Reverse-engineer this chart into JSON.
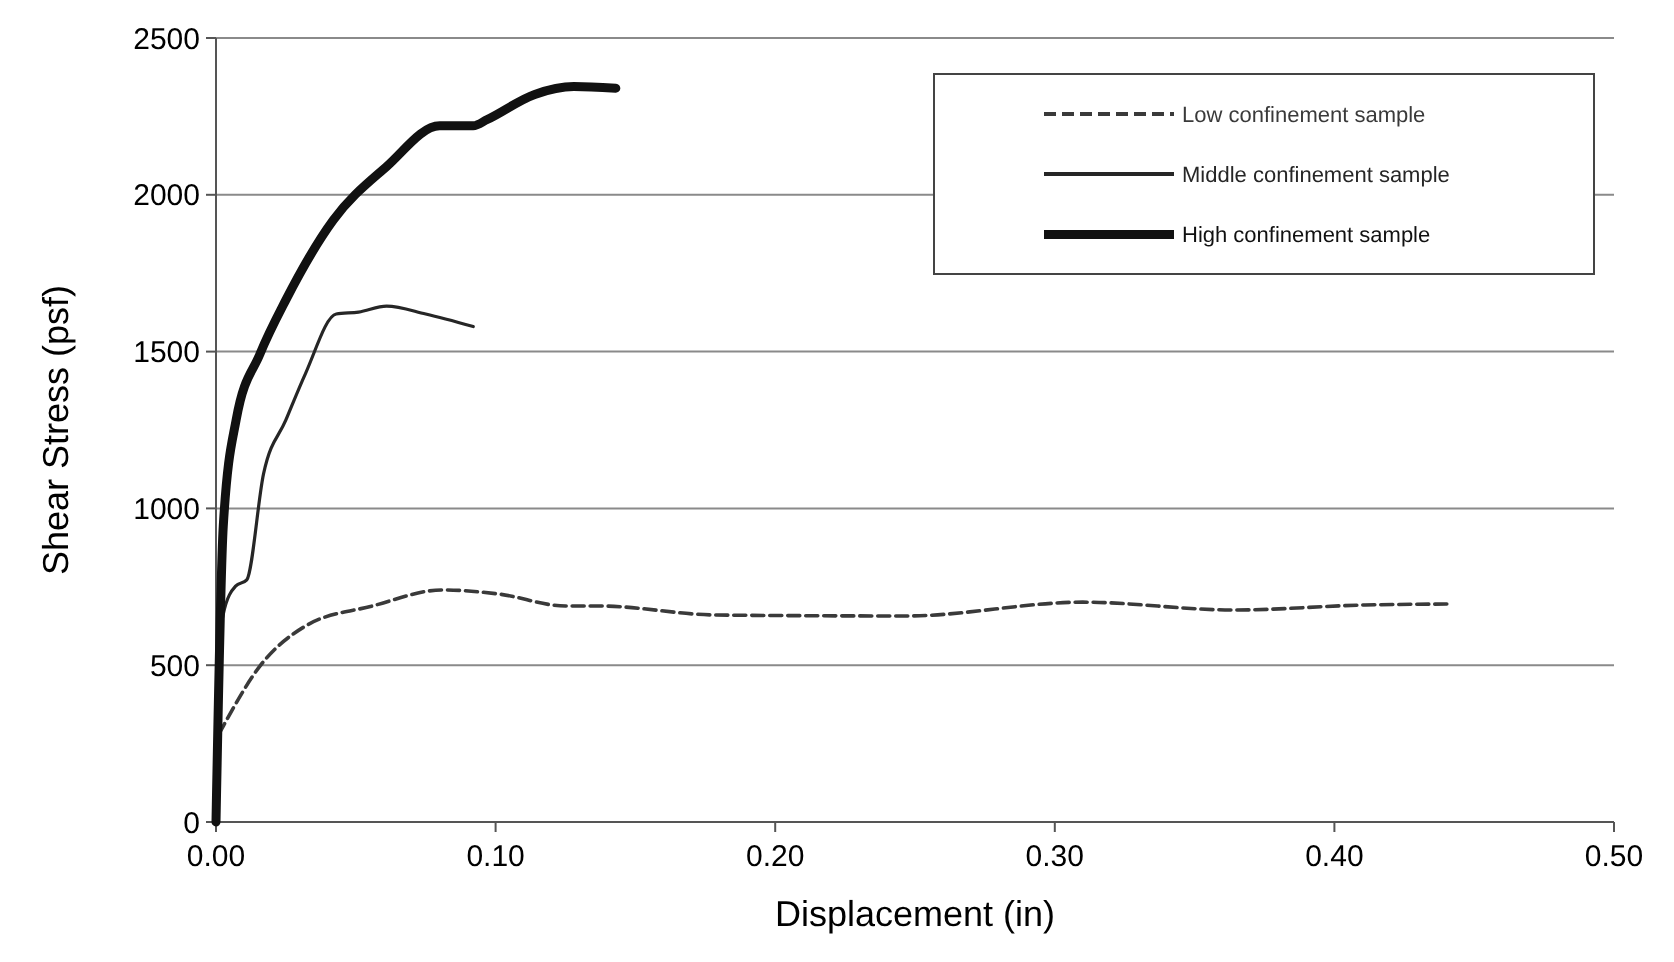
{
  "chart_data": {
    "type": "line",
    "xlabel": "Displacement (in)",
    "ylabel": "Shear Stress (psf)",
    "xlim": [
      0,
      0.5
    ],
    "xticks": [
      {
        "value": 0,
        "label": "0.00"
      },
      {
        "value": 0.1,
        "label": "0.10"
      },
      {
        "value": 0.2,
        "label": "0.20"
      },
      {
        "value": 0.3,
        "label": "0.30"
      },
      {
        "value": 0.4,
        "label": "0.40"
      },
      {
        "value": 0.5,
        "label": "0.50"
      }
    ],
    "ylim": [
      0,
      2500
    ],
    "yticks": [
      0,
      500,
      1000,
      1500,
      2000,
      2500
    ],
    "grid": "y",
    "legend": "top right",
    "marker": "none",
    "series": [
      {
        "name": "Low confinement sample",
        "color": "#3a3a3a",
        "line_style": "dashed",
        "x": [
          0.001,
          0.0026,
          0.0157,
          0.032,
          0.056,
          0.081,
          0.101,
          0.125,
          0.137,
          0.179,
          0.247,
          0.31,
          0.364,
          0.411,
          0.441
        ],
        "values": [
          280,
          306,
          497,
          625,
          689,
          740,
          727,
          689,
          689,
          660,
          657,
          701,
          676,
          692,
          695
        ]
      },
      {
        "name": "Middle confinement sample",
        "color": "#262626",
        "line_style": "solid",
        "x": [
          0,
          0.001,
          0.0026,
          0.007,
          0.011,
          0.017,
          0.025,
          0.032,
          0.043,
          0.051,
          0.061,
          0.075,
          0.092
        ],
        "values": [
          0,
          550,
          663,
          752,
          772,
          1110,
          1282,
          1430,
          1620,
          1626,
          1645,
          1620,
          1580
        ]
      },
      {
        "name": "High confinement sample",
        "color": "#111111",
        "line_style": "solid",
        "x": [
          0,
          0.0026,
          0.0072,
          0.0157,
          0.025,
          0.042,
          0.061,
          0.08,
          0.092,
          0.097,
          0.114,
          0.128,
          0.143
        ],
        "values": [
          0,
          944,
          1282,
          1492,
          1665,
          1920,
          2090,
          2220,
          2220,
          2240,
          2320,
          2345,
          2340
        ]
      }
    ]
  }
}
